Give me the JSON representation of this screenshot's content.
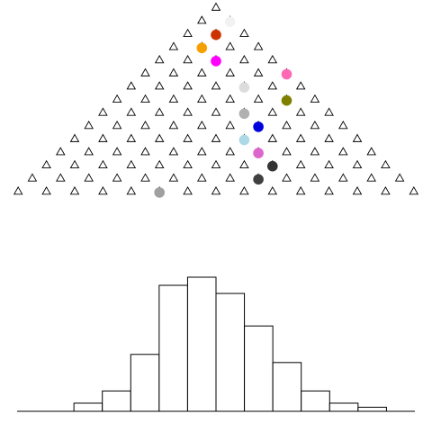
{
  "board": {
    "type": "galton-board",
    "rows": 15,
    "peg_shape": "triangle-outline",
    "colors": {
      "background": "#ffffff",
      "peg_stroke": "#000000",
      "bin_fill": "#ffffff",
      "bin_stroke": "#000000"
    },
    "balls": [
      {
        "row": 1,
        "gap": 1,
        "color": "#f2f2f2"
      },
      {
        "row": 2,
        "gap": 1,
        "color": "#cc3300"
      },
      {
        "row": 3,
        "gap": 1,
        "color": "#f5a000"
      },
      {
        "row": 4,
        "gap": 2,
        "color": "#ff00ff"
      },
      {
        "row": 5,
        "gap": 5,
        "color": "#ff69b4"
      },
      {
        "row": 6,
        "gap": 4,
        "color": "#dcdcdc"
      },
      {
        "row": 7,
        "gap": 6,
        "color": "#808000"
      },
      {
        "row": 8,
        "gap": 5,
        "color": "#b0b0b0"
      },
      {
        "row": 9,
        "gap": 6,
        "color": "#0000dd"
      },
      {
        "row": 10,
        "gap": 6,
        "color": "#add8e6"
      },
      {
        "row": 11,
        "gap": 7,
        "color": "#dd66cc"
      },
      {
        "row": 12,
        "gap": 8,
        "color": "#333333"
      },
      {
        "row": 13,
        "gap": 8,
        "color": "#404040"
      },
      {
        "row": 14,
        "gap": 5,
        "color": "#a0a0a0"
      }
    ]
  },
  "histogram": {
    "bin_counts": [
      0,
      0,
      2,
      5,
      14,
      31,
      33,
      29,
      21,
      12,
      5,
      2,
      1,
      0
    ]
  }
}
